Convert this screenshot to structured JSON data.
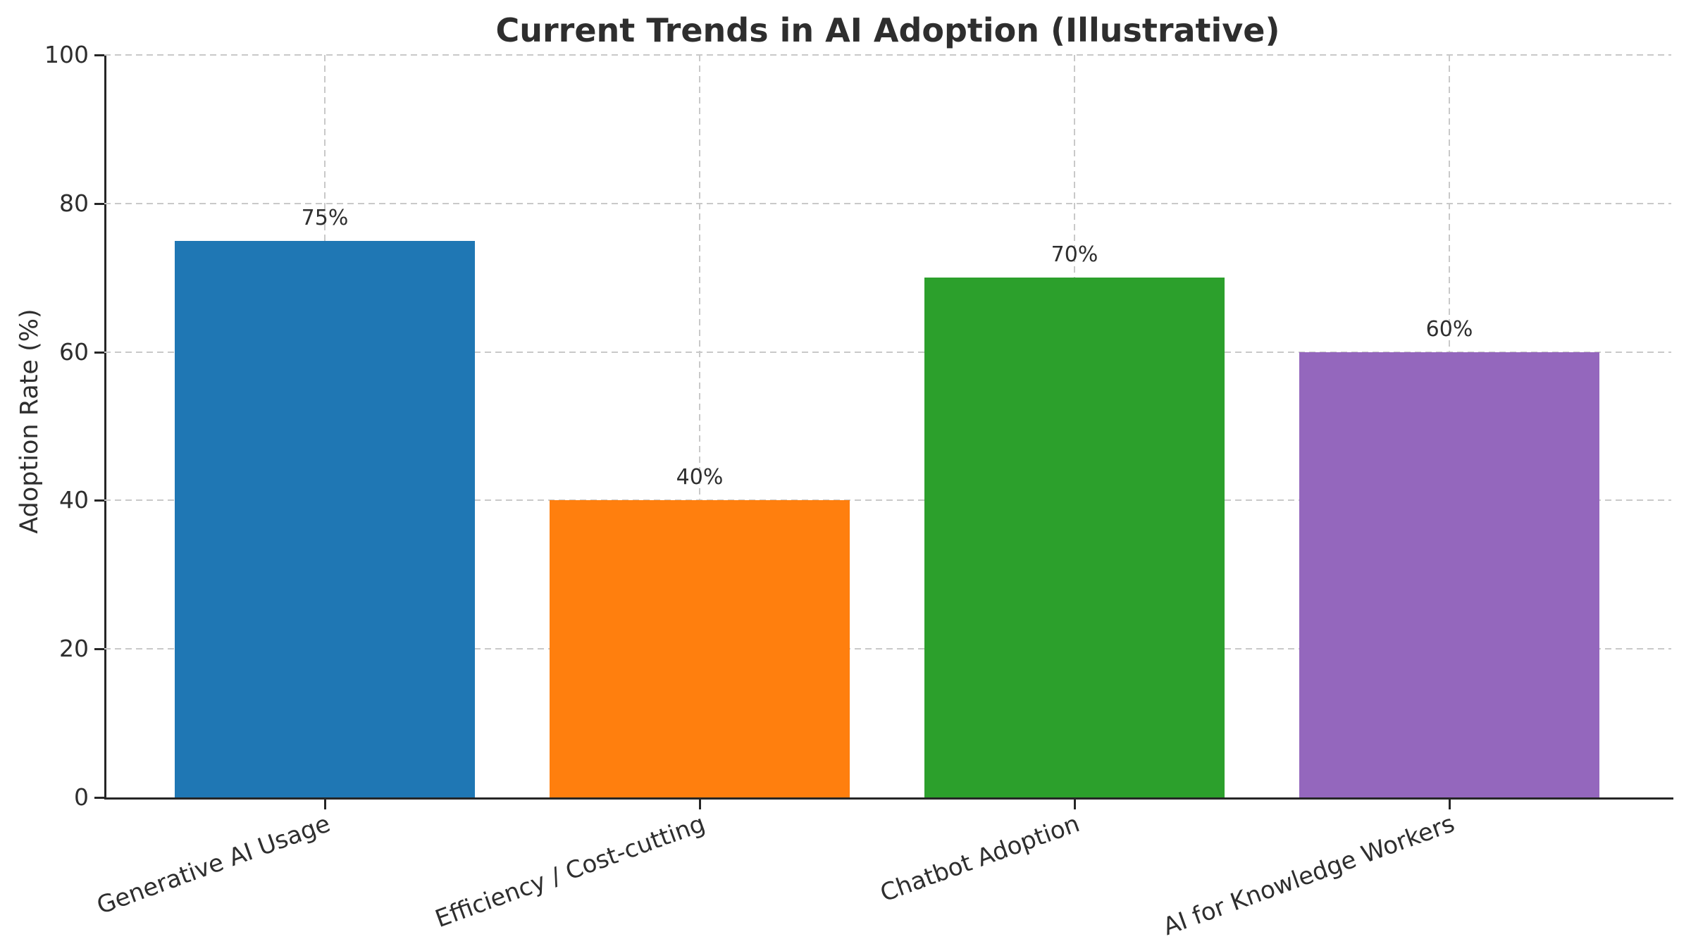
{
  "chart_data": {
    "type": "bar",
    "title": "Current Trends in AI Adoption (Illustrative)",
    "ylabel": "Adoption Rate (%)",
    "xlabel": "",
    "categories": [
      "Generative AI Usage",
      "Efficiency / Cost-cutting",
      "Chatbot Adoption",
      "AI for Knowledge Workers"
    ],
    "values": [
      75,
      40,
      70,
      60
    ],
    "value_labels": [
      "75%",
      "40%",
      "70%",
      "60%"
    ],
    "bar_colors": [
      "#1f77b4",
      "#ff7f0e",
      "#2ca02c",
      "#9467bd"
    ],
    "ylim": [
      0,
      100
    ],
    "yticks": [
      0,
      20,
      40,
      60,
      80,
      100
    ],
    "ytick_labels": [
      "0",
      "20",
      "40",
      "60",
      "80",
      "100"
    ],
    "grid": {
      "horizontal": true,
      "vertical": true,
      "style": "dashed",
      "color": "#c9c9c9"
    },
    "legend": "none",
    "background_color": "#ffffff",
    "axis_color": "#262626",
    "text_color": "#2e2e2e"
  }
}
